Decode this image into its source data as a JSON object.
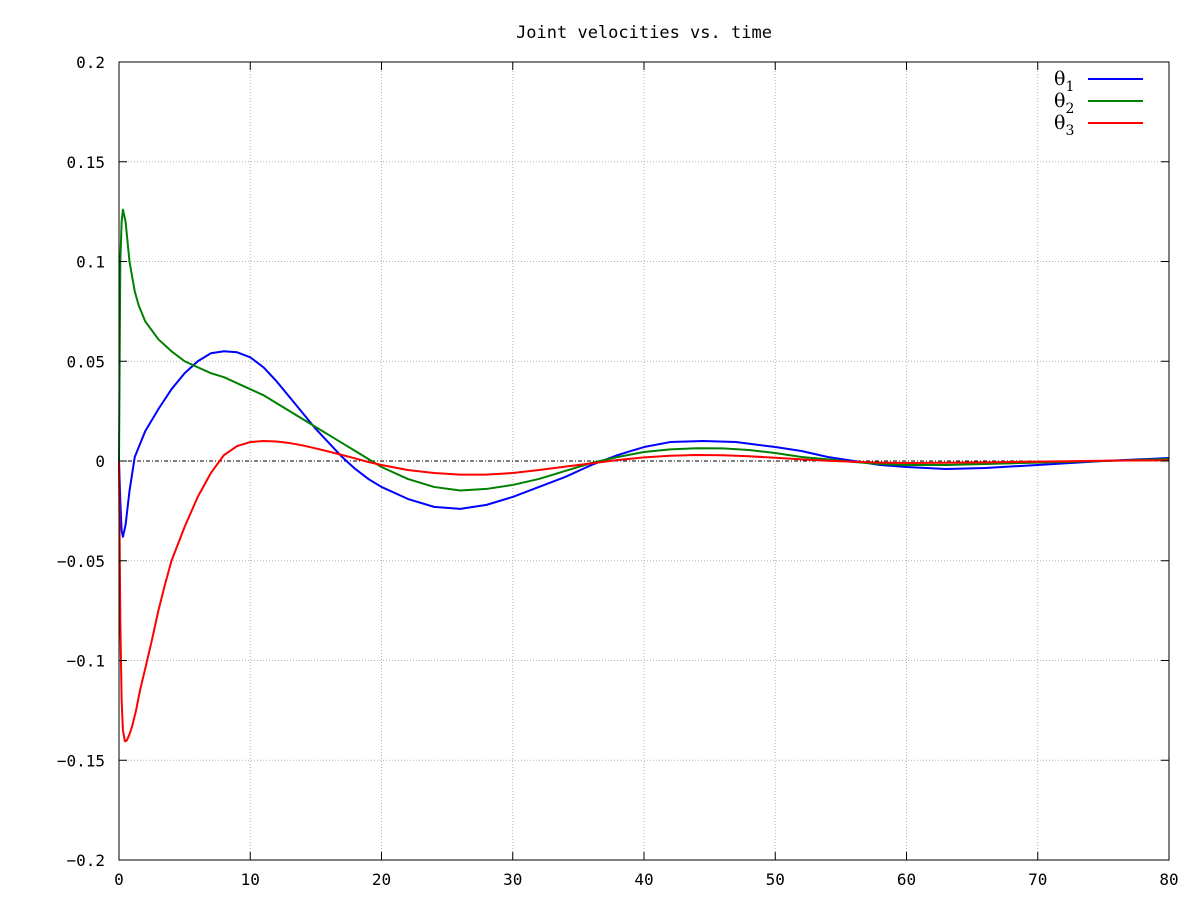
{
  "chart_data": {
    "type": "line",
    "title": "Joint velocities vs. time",
    "xlabel": "",
    "ylabel": "",
    "xlim": [
      0,
      80
    ],
    "ylim": [
      -0.2,
      0.2
    ],
    "xticks": [
      0,
      10,
      20,
      30,
      40,
      50,
      60,
      70,
      80
    ],
    "xtick_labels": [
      "0",
      "10",
      "20",
      "30",
      "40",
      "50",
      "60",
      "70",
      "80"
    ],
    "yticks": [
      -0.2,
      -0.15,
      -0.1,
      -0.05,
      0,
      0.05,
      0.1,
      0.15,
      0.2
    ],
    "ytick_labels": [
      "−0.2",
      "−0.15",
      "−0.1",
      "−0.05",
      "0",
      "0.05",
      "0.1",
      "0.15",
      "0.2"
    ],
    "grid": true,
    "zero_line": true,
    "legend_position": "top-right",
    "series": [
      {
        "name": "θ",
        "subscript": "1",
        "color": "#0000ff",
        "x": [
          0,
          0.1,
          0.2,
          0.3,
          0.5,
          0.8,
          1.2,
          2,
          3,
          4,
          5,
          6,
          7,
          8,
          9,
          10,
          11,
          12,
          13,
          14,
          15,
          16,
          17,
          18,
          19,
          20,
          22,
          24,
          26,
          28,
          30,
          32,
          34,
          36,
          38,
          40,
          42,
          44.5,
          47,
          50,
          52,
          54,
          56,
          58,
          60,
          63,
          66,
          70,
          75,
          80
        ],
        "y": [
          0,
          -0.02,
          -0.035,
          -0.038,
          -0.032,
          -0.015,
          0.002,
          0.015,
          0.026,
          0.036,
          0.044,
          0.05,
          0.054,
          0.055,
          0.0545,
          0.052,
          0.047,
          0.04,
          0.032,
          0.024,
          0.016,
          0.009,
          0.002,
          -0.004,
          -0.009,
          -0.013,
          -0.019,
          -0.023,
          -0.024,
          -0.022,
          -0.018,
          -0.013,
          -0.008,
          -0.002,
          0.003,
          0.007,
          0.0095,
          0.01,
          0.0095,
          0.007,
          0.005,
          0.002,
          0.0,
          -0.002,
          -0.003,
          -0.004,
          -0.0035,
          -0.002,
          0.0,
          0.0015
        ]
      },
      {
        "name": "θ",
        "subscript": "2",
        "color": "#008000",
        "x": [
          0,
          0.05,
          0.1,
          0.2,
          0.3,
          0.5,
          0.8,
          1.2,
          1.5,
          2,
          3,
          4,
          5,
          6,
          7,
          8,
          9,
          10,
          11,
          12,
          13,
          14,
          15,
          16,
          17,
          18,
          19,
          20,
          22,
          24,
          26,
          28,
          30,
          32,
          34,
          36,
          38,
          40,
          42,
          44,
          46,
          48,
          50,
          52,
          54,
          56,
          58,
          60,
          63,
          66,
          70,
          75,
          80
        ],
        "y": [
          0,
          0.05,
          0.1,
          0.12,
          0.126,
          0.12,
          0.1,
          0.085,
          0.078,
          0.07,
          0.061,
          0.055,
          0.05,
          0.047,
          0.044,
          0.042,
          0.039,
          0.036,
          0.033,
          0.029,
          0.025,
          0.021,
          0.017,
          0.013,
          0.009,
          0.005,
          0.001,
          -0.003,
          -0.009,
          -0.013,
          -0.0148,
          -0.014,
          -0.012,
          -0.009,
          -0.005,
          -0.001,
          0.002,
          0.0045,
          0.0058,
          0.0064,
          0.0063,
          0.0055,
          0.004,
          0.002,
          0.0008,
          -0.0005,
          -0.0015,
          -0.002,
          -0.002,
          -0.0015,
          -0.0008,
          0.0,
          0.001
        ]
      },
      {
        "name": "θ",
        "subscript": "3",
        "color": "#ff0000",
        "x": [
          0,
          0.05,
          0.1,
          0.2,
          0.3,
          0.45,
          0.6,
          0.8,
          1,
          1.3,
          1.6,
          2,
          2.5,
          3,
          3.5,
          4,
          5,
          6,
          7,
          8,
          9,
          10,
          11,
          12,
          13,
          14,
          15,
          16,
          17,
          18,
          19,
          20,
          22,
          24,
          26,
          28,
          30,
          32,
          34,
          36,
          38,
          40,
          42,
          44,
          46,
          48,
          50,
          52,
          54,
          56,
          58,
          60,
          63,
          66,
          70,
          75,
          80
        ],
        "y": [
          0,
          -0.04,
          -0.08,
          -0.12,
          -0.135,
          -0.1405,
          -0.14,
          -0.137,
          -0.133,
          -0.125,
          -0.115,
          -0.104,
          -0.09,
          -0.075,
          -0.062,
          -0.05,
          -0.033,
          -0.018,
          -0.006,
          0.003,
          0.0075,
          0.0095,
          0.01,
          0.0098,
          0.009,
          0.0078,
          0.0063,
          0.0047,
          0.003,
          0.0013,
          -0.0005,
          -0.002,
          -0.0045,
          -0.006,
          -0.0068,
          -0.0068,
          -0.006,
          -0.0045,
          -0.0028,
          -0.0012,
          0.0005,
          0.0018,
          0.0026,
          0.003,
          0.0029,
          0.0024,
          0.0016,
          0.0008,
          0.0001,
          -0.0004,
          -0.0008,
          -0.001,
          -0.0009,
          -0.0007,
          -0.0003,
          0.0001,
          0.0004
        ]
      }
    ]
  }
}
